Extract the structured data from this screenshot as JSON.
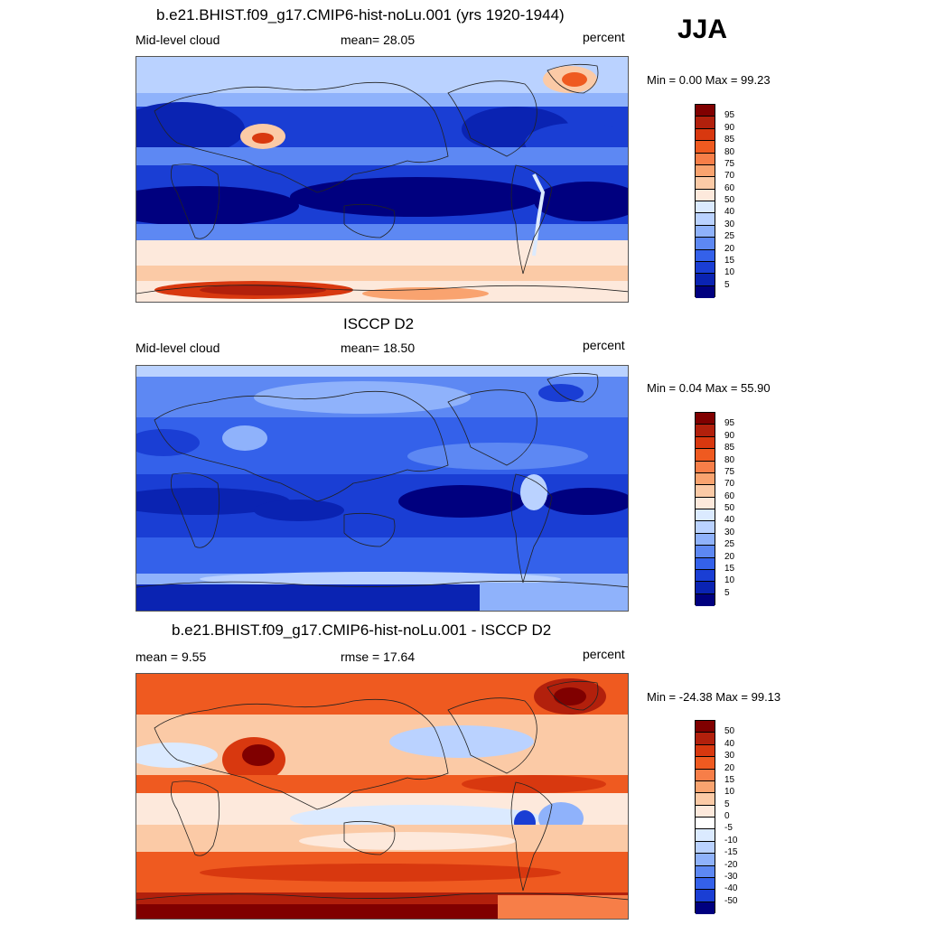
{
  "season": "JJA",
  "panels": [
    {
      "title": "b.e21.BHIST.f09_g17.CMIP6-hist-noLu.001 (yrs 1920-1944)",
      "left_label": "Mid-level cloud",
      "center_label": "mean=  28.05",
      "right_label": "percent",
      "minmax": "Min =   0.00 Max =  99.23",
      "colorbar": {
        "labels": [
          "95",
          "90",
          "85",
          "80",
          "75",
          "70",
          "60",
          "50",
          "40",
          "30",
          "25",
          "20",
          "15",
          "10",
          "5"
        ],
        "colors": [
          "#800000",
          "#b2200c",
          "#d8380f",
          "#ef5a20",
          "#f77e48",
          "#f9a36f",
          "#fbcaa6",
          "#fde9dc",
          "#dbeaff",
          "#bad2ff",
          "#8fb2fb",
          "#5d88f3",
          "#3461ea",
          "#1a3ed4",
          "#0a23b2",
          "#00007f"
        ]
      }
    },
    {
      "title": "ISCCP D2",
      "left_label": "Mid-level cloud",
      "center_label": "mean=  18.50",
      "right_label": "percent",
      "minmax": "Min =   0.04 Max =  55.90",
      "colorbar": {
        "labels": [
          "95",
          "90",
          "85",
          "80",
          "75",
          "70",
          "60",
          "50",
          "40",
          "30",
          "25",
          "20",
          "15",
          "10",
          "5"
        ],
        "colors": [
          "#800000",
          "#b2200c",
          "#d8380f",
          "#ef5a20",
          "#f77e48",
          "#f9a36f",
          "#fbcaa6",
          "#fde9dc",
          "#dbeaff",
          "#bad2ff",
          "#8fb2fb",
          "#5d88f3",
          "#3461ea",
          "#1a3ed4",
          "#0a23b2",
          "#00007f"
        ]
      }
    },
    {
      "title": "b.e21.BHIST.f09_g17.CMIP6-hist-noLu.001 - ISCCP D2",
      "left_label": "mean =   9.55",
      "center_label": "rmse =  17.64",
      "right_label": "percent",
      "minmax": "Min = -24.38 Max =  99.13",
      "colorbar": {
        "labels": [
          "50",
          "40",
          "30",
          "20",
          "15",
          "10",
          "5",
          "0",
          "-5",
          "-10",
          "-15",
          "-20",
          "-30",
          "-40",
          "-50"
        ],
        "colors": [
          "#800000",
          "#b2200c",
          "#d8380f",
          "#ef5a20",
          "#f77e48",
          "#f9a36f",
          "#fbcaa6",
          "#fde9dc",
          "#ffffff",
          "#dbeaff",
          "#bad2ff",
          "#8fb2fb",
          "#5d88f3",
          "#3461ea",
          "#1a3ed4",
          "#00007f"
        ]
      }
    }
  ]
}
